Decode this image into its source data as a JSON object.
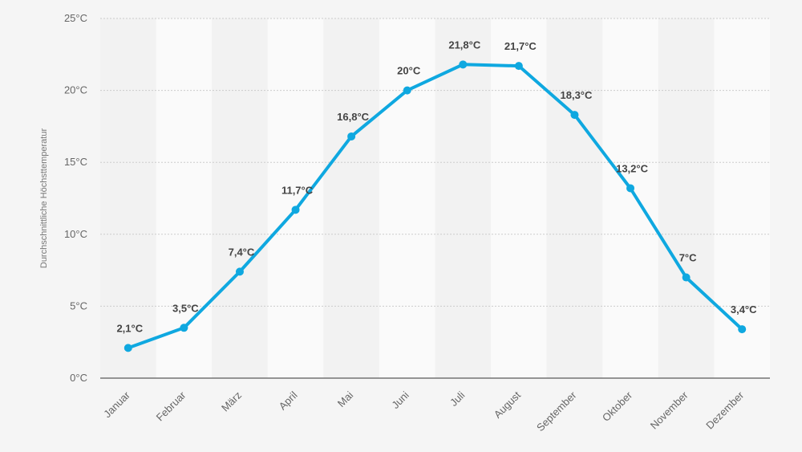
{
  "chart_data": {
    "type": "line",
    "title": "",
    "xlabel": "",
    "ylabel": "Durchschnittliche Höchsttemperatur",
    "categories": [
      "Januar",
      "Februar",
      "März",
      "April",
      "Mai",
      "Juni",
      "Juli",
      "August",
      "September",
      "Oktober",
      "November",
      "Dezember"
    ],
    "series": [
      {
        "values": [
          2.1,
          3.5,
          7.4,
          11.7,
          16.8,
          20,
          21.8,
          21.7,
          18.3,
          13.2,
          7,
          3.4
        ],
        "labels": [
          "2,1°C",
          "3,5°C",
          "7,4°C",
          "11,7°C",
          "16,8°C",
          "20°C",
          "21,8°C",
          "21,7°C",
          "18,3°C",
          "13,2°C",
          "7°C",
          "3,4°C"
        ]
      }
    ],
    "ylim": [
      0,
      25
    ],
    "yticks": [
      0,
      5,
      10,
      15,
      20,
      25
    ],
    "ytick_labels": [
      "0°C",
      "5°C",
      "10°C",
      "15°C",
      "20°C",
      "25°C"
    ],
    "grid": true,
    "legend": "none",
    "colors": {
      "line": "#0fa8e0",
      "grid": "#cccccc",
      "band_light": "#fafafa",
      "band_dark": "#f2f2f2"
    }
  }
}
